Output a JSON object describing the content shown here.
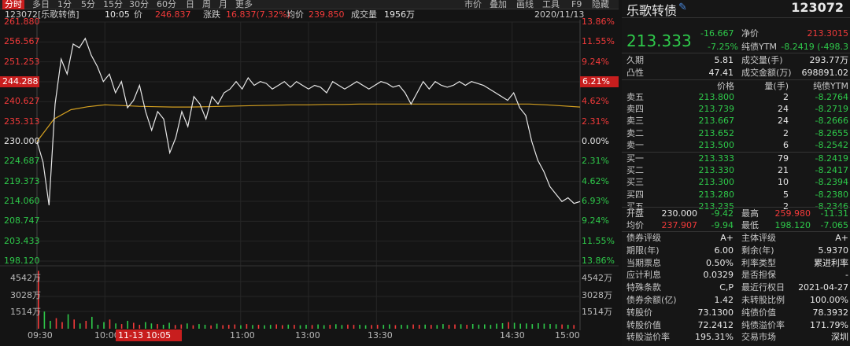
{
  "toolbar": {
    "tabs": [
      "分时",
      "多日",
      "1分",
      "5分",
      "15分",
      "30分",
      "60分",
      "日",
      "周",
      "月",
      "更多"
    ],
    "right": [
      "市价",
      "叠加",
      "画线",
      "工具",
      "F9",
      "隐藏"
    ]
  },
  "header": {
    "code_name": "123072[乐歌转债]",
    "time": "10:05",
    "price_label": "价",
    "price": "246.837",
    "change_label": "涨跌",
    "change": "16.837(7.32%)",
    "avg_label": "均价",
    "avg": "239.850",
    "vol_label": "成交量",
    "vol": "1956万",
    "date": "2020/11/13"
  },
  "axis": {
    "left_prices": [
      "261.880",
      "256.567",
      "251.253",
      "244.288",
      "240.627",
      "235.313",
      "230.000",
      "224.687",
      "219.373",
      "214.060",
      "208.747",
      "203.433",
      "198.120"
    ],
    "right_pcts": [
      "13.86%",
      "11.55%",
      "9.24%",
      "6.21%",
      "4.62%",
      "2.31%",
      "0.00%",
      "2.31%",
      "4.62%",
      "6.93%",
      "9.24%",
      "11.55%",
      "13.86%"
    ],
    "vol_left": [
      "4542万",
      "3028万",
      "1514万"
    ],
    "vol_right": [
      "4542万",
      "3028万",
      "1514万"
    ],
    "time_labels": [
      "09:30",
      "10:00",
      "11:00",
      "13:00",
      "13:30",
      "14:30",
      "15:00"
    ],
    "time_tag": "11-13 10:05"
  },
  "colors": {
    "up": "#f23a3a",
    "down": "#2ec94a",
    "price_line": "#e8e8e8",
    "avg_line": "#d4a020",
    "accent": "#c81e1e"
  },
  "chart_data": {
    "type": "line",
    "base": 230.0,
    "ylim": [
      198.12,
      261.88
    ],
    "series": [
      {
        "values": [
          230.0,
          224.5,
          213.0,
          240.0,
          252.0,
          248.0,
          256.0,
          255.0,
          257.5,
          253.0,
          250.0,
          246.0,
          248.0,
          243.0,
          246.0,
          239.0,
          241.0,
          245.0,
          238.0,
          233.0,
          238.0,
          236.0,
          227.0,
          231.0,
          238.0,
          234.0,
          242.0,
          240.0,
          236.0,
          242.0,
          240.0,
          243.0,
          244.0,
          246.0,
          244.0,
          247.0,
          245.0,
          246.0,
          245.5,
          244.0,
          245.0,
          246.0,
          244.5,
          246.0,
          245.0,
          244.0,
          245.0,
          244.5,
          243.0,
          246.0,
          245.0,
          244.0,
          245.0,
          246.0,
          245.0,
          244.0,
          245.0,
          246.0,
          245.5,
          244.5,
          245.0,
          243.0,
          240.0,
          243.0,
          246.0,
          244.0,
          246.0,
          245.0,
          244.5,
          245.0,
          246.0,
          245.0,
          246.0,
          245.5,
          245.0,
          244.0,
          243.0,
          242.0,
          241.0,
          243.0,
          239.0,
          237.0,
          230.0,
          225.0,
          222.0,
          218.0,
          216.0,
          214.0,
          215.0,
          213.5,
          214.0
        ]
      },
      {
        "values": [
          230.0,
          236.0,
          238.5,
          239.3,
          239.8,
          239.6,
          239.4,
          239.3,
          239.2,
          239.2,
          239.3,
          239.4,
          239.5,
          239.6,
          239.7,
          239.8,
          239.8,
          239.9,
          239.9,
          240.0,
          240.0,
          240.0,
          240.0,
          240.0,
          240.0,
          240.0,
          240.0,
          240.0,
          240.0,
          240.0,
          239.8,
          239.5,
          239.2
        ]
      }
    ],
    "volume": [
      4400,
      1300,
      600,
      800,
      500,
      1100,
      700,
      400,
      600,
      900,
      300,
      500,
      700,
      400,
      350,
      600,
      450,
      300,
      500,
      400,
      350,
      300,
      450,
      280,
      320,
      400,
      260,
      350,
      300,
      250,
      380,
      270,
      300,
      320,
      260,
      350,
      280,
      300,
      260,
      290,
      330,
      270,
      310,
      290,
      260,
      300,
      280,
      320,
      270,
      300,
      340,
      280,
      310,
      290,
      300,
      260,
      280,
      300,
      290,
      330,
      270,
      300,
      280,
      320,
      300,
      310,
      290,
      280,
      350,
      300,
      320,
      340,
      300,
      360,
      310,
      330,
      290,
      380,
      420,
      500,
      450,
      380,
      400,
      350,
      420,
      380,
      360,
      340,
      320,
      300,
      280
    ]
  },
  "right_panel": {
    "title": "乐歌转债",
    "code": "123072",
    "price": "213.333",
    "change": "-16.667",
    "change_pct": "-7.25%",
    "quote": [
      {
        "label": "净价",
        "value": "213.3015"
      },
      {
        "label": "纯债YTM",
        "value": "-8.2419 (-498.3"
      }
    ],
    "stats": [
      {
        "l1": "久期",
        "v1": "5.81",
        "l2": "成交量(手)",
        "v2": "293.77万"
      },
      {
        "l1": "凸性",
        "v1": "47.41",
        "l2": "成交金额(万)",
        "v2": "698891.02"
      }
    ],
    "book_header": {
      "price": "价格",
      "qty": "量(手)",
      "ytm": "纯债YTM"
    },
    "asks": [
      {
        "label": "卖五",
        "price": "213.800",
        "qty": "2",
        "ytm": "-8.2764"
      },
      {
        "label": "卖四",
        "price": "213.739",
        "qty": "24",
        "ytm": "-8.2719"
      },
      {
        "label": "卖三",
        "price": "213.667",
        "qty": "24",
        "ytm": "-8.2666"
      },
      {
        "label": "卖二",
        "price": "213.652",
        "qty": "2",
        "ytm": "-8.2655"
      },
      {
        "label": "卖一",
        "price": "213.500",
        "qty": "6",
        "ytm": "-8.2542"
      }
    ],
    "bids": [
      {
        "label": "买一",
        "price": "213.333",
        "qty": "79",
        "ytm": "-8.2419"
      },
      {
        "label": "买二",
        "price": "213.330",
        "qty": "21",
        "ytm": "-8.2417"
      },
      {
        "label": "买三",
        "price": "213.300",
        "qty": "10",
        "ytm": "-8.2394"
      },
      {
        "label": "买四",
        "price": "213.280",
        "qty": "5",
        "ytm": "-8.2380"
      },
      {
        "label": "买五",
        "price": "213.235",
        "qty": "2",
        "ytm": "-8.2346"
      }
    ],
    "ohlc": [
      {
        "l1": "开盘",
        "v1": "230.000",
        "c1": "-9.42",
        "l2": "最高",
        "v2": "259.980",
        "c2": "-11.31"
      },
      {
        "l1": "均价",
        "v1": "237.907",
        "c1": "-9.94",
        "l2": "最低",
        "v2": "198.120",
        "c2": "-7.065"
      }
    ],
    "info": [
      {
        "l1": "债券评级",
        "v1": "A+",
        "l2": "主体评级",
        "v2": "A+"
      },
      {
        "l1": "期限(年)",
        "v1": "6.00",
        "l2": "剩余(年)",
        "v2": "5.9370"
      },
      {
        "l1": "当期票息",
        "v1": "0.50%",
        "l2": "利率类型",
        "v2": "累进利率"
      },
      {
        "l1": "应计利息",
        "v1": "0.0329",
        "l2": "是否担保",
        "v2": "-"
      },
      {
        "l1": "特殊条款",
        "v1": "C,P",
        "l2": "最近行权日",
        "v2": "2021-04-27"
      },
      {
        "l1": "债券余额(亿)",
        "v1": "1.42",
        "l2": "未转股比例",
        "v2": "100.00%"
      },
      {
        "l1": "转股价",
        "v1": "73.1300",
        "l2": "纯债价值",
        "v2": "78.3932"
      },
      {
        "l1": "转股价值",
        "v1": "72.2412",
        "l2": "纯债溢价率",
        "v2": "171.79%"
      },
      {
        "l1": "转股溢价率",
        "v1": "195.31%",
        "l2": "交易市场",
        "v2": "深圳"
      }
    ]
  }
}
